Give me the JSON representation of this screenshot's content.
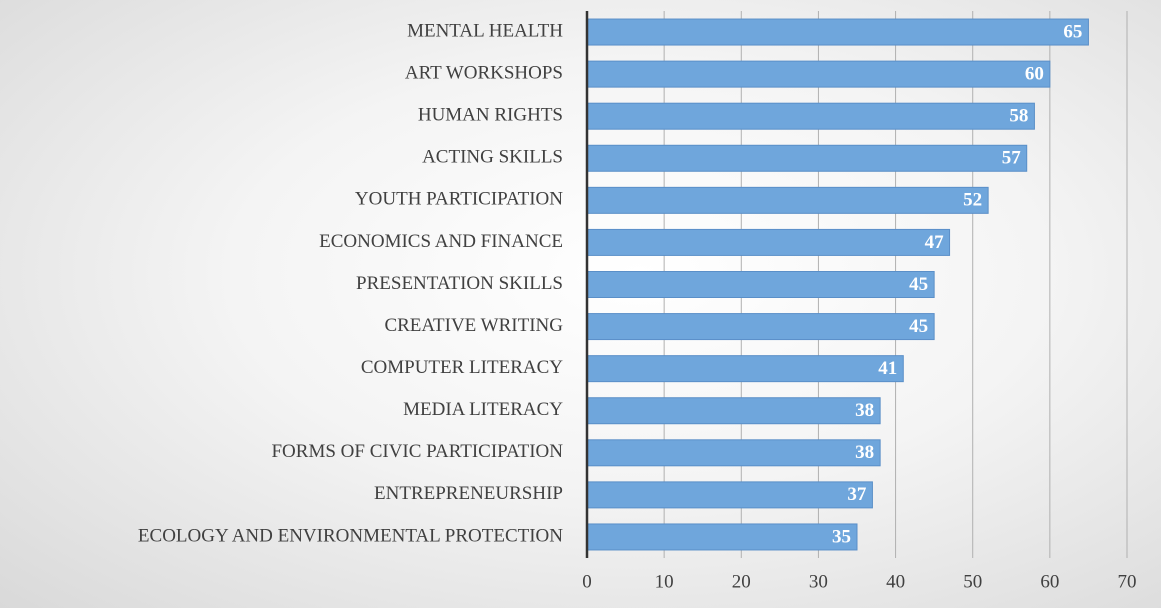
{
  "chart_data": {
    "type": "bar",
    "orientation": "horizontal",
    "categories": [
      "MENTAL HEALTH",
      "ART WORKSHOPS",
      "HUMAN RIGHTS",
      "ACTING SKILLS",
      "YOUTH PARTICIPATION",
      "ECONOMICS AND FINANCE",
      "PRESENTATION SKILLS",
      "CREATIVE WRITING",
      "COMPUTER LITERACY",
      "MEDIA LITERACY",
      "FORMS OF CIVIC PARTICIPATION",
      "ENTREPRENEURSHIP",
      "ECOLOGY AND ENVIRONMENTAL PROTECTION"
    ],
    "values": [
      65,
      60,
      58,
      57,
      52,
      47,
      45,
      45,
      41,
      38,
      38,
      37,
      35
    ],
    "color": "#6fa6dc",
    "xlim": [
      0,
      70
    ],
    "xticks": [
      0,
      10,
      20,
      30,
      40,
      50,
      60,
      70
    ],
    "grid": true
  }
}
